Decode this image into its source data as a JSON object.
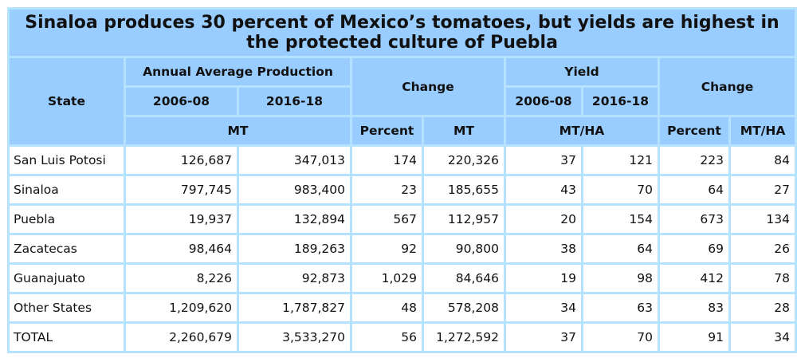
{
  "title": "Sinaloa produces 30 percent of Mexico’s tomatoes, but yields are highest in the protected culture of Puebla",
  "header": {
    "state": "State",
    "production": "Annual Average Production",
    "change": "Change",
    "yield": "Yield",
    "change2": "Change",
    "y1": "2006-08",
    "y2": "2016-18",
    "y3": "2006-08",
    "y4": "2016-18",
    "mt": "MT",
    "percent": "Percent",
    "mt2": "MT",
    "mtha": "MT/HA",
    "percent2": "Percent",
    "mtha2": "MT/HA"
  },
  "colors": {
    "header_bg": "#99ccff",
    "border": "#b5e2ff"
  },
  "chart_data": {
    "type": "table",
    "title": "Sinaloa produces 30 percent of Mexico’s tomatoes, but yields are highest in the protected culture of Puebla",
    "columns": [
      "State",
      "Production 2006-08 (MT)",
      "Production 2016-18 (MT)",
      "Change Percent",
      "Change MT",
      "Yield 2006-08 (MT/HA)",
      "Yield 2016-18 (MT/HA)",
      "Yield Change Percent",
      "Yield Change MT/HA"
    ],
    "rows": [
      [
        "San Luis Potosi",
        "126,687",
        "347,013",
        "174",
        "220,326",
        "37",
        "121",
        "223",
        "84"
      ],
      [
        "Sinaloa",
        "797,745",
        "983,400",
        "23",
        "185,655",
        "43",
        "70",
        "64",
        "27"
      ],
      [
        "Puebla",
        "19,937",
        "132,894",
        "567",
        "112,957",
        "20",
        "154",
        "673",
        "134"
      ],
      [
        "Zacatecas",
        "98,464",
        "189,263",
        "92",
        "90,800",
        "38",
        "64",
        "69",
        "26"
      ],
      [
        "Guanajuato",
        "8,226",
        "92,873",
        "1,029",
        "84,646",
        "19",
        "98",
        "412",
        "78"
      ],
      [
        "Other States",
        "1,209,620",
        "1,787,827",
        "48",
        "578,208",
        "34",
        "63",
        "83",
        "28"
      ],
      [
        "TOTAL",
        "2,260,679",
        "3,533,270",
        "56",
        "1,272,592",
        "37",
        "70",
        "91",
        "34"
      ]
    ]
  }
}
